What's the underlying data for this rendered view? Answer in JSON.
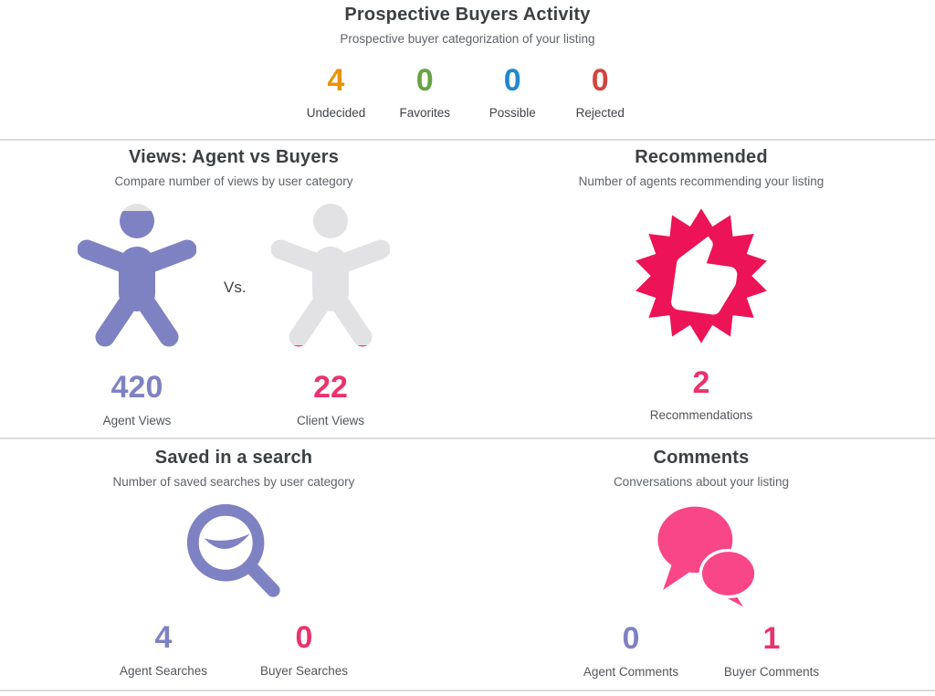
{
  "header": {
    "title": "Prospective Buyers Activity",
    "subtitle": "Prospective buyer categorization of your listing"
  },
  "buyer_categories": [
    {
      "label": "Undecided",
      "value": "4"
    },
    {
      "label": "Favorites",
      "value": "0"
    },
    {
      "label": "Possible",
      "value": "0"
    },
    {
      "label": "Rejected",
      "value": "0"
    }
  ],
  "views_panel": {
    "title": "Views: Agent vs Buyers",
    "subtitle": "Compare number of views by user category",
    "vs_label": "Vs.",
    "agent": {
      "value": "420",
      "label": "Agent Views",
      "fill_percent": 94
    },
    "client": {
      "value": "22",
      "label": "Client Views",
      "fill_percent": 6
    }
  },
  "recommended_panel": {
    "title": "Recommended",
    "subtitle": "Number of agents recommending your listing",
    "value": "2",
    "label": "Recommendations"
  },
  "saved_search_panel": {
    "title": "Saved in a search",
    "subtitle": "Number of saved searches by user category",
    "agent": {
      "value": "4",
      "label": "Agent Searches"
    },
    "buyer": {
      "value": "0",
      "label": "Buyer Searches"
    }
  },
  "comments_panel": {
    "title": "Comments",
    "subtitle": "Conversations about your listing",
    "agent": {
      "value": "0",
      "label": "Agent Comments"
    },
    "buyer": {
      "value": "1",
      "label": "Buyer Comments"
    }
  },
  "icons": {
    "views": "person-icon",
    "recommended": "thumbs-up-badge-icon",
    "saved_search": "search-magnifier-icon",
    "comments": "chat-bubbles-icon"
  },
  "colors": {
    "purple": "#7E82C3",
    "pink_number": "#E9336D",
    "badge_pink": "#EC1456",
    "bubble_pink": "#F94687",
    "feet_pink": "#F0437F",
    "icon_gray": "#E2E2E4",
    "cat_undecided": "#E8930C",
    "cat_favorites": "#67A244",
    "cat_possible": "#2187D0",
    "cat_rejected": "#D2453F",
    "title_text": "#3C4043",
    "subtle_text": "#5F6368",
    "divider": "#D9DBDE"
  }
}
